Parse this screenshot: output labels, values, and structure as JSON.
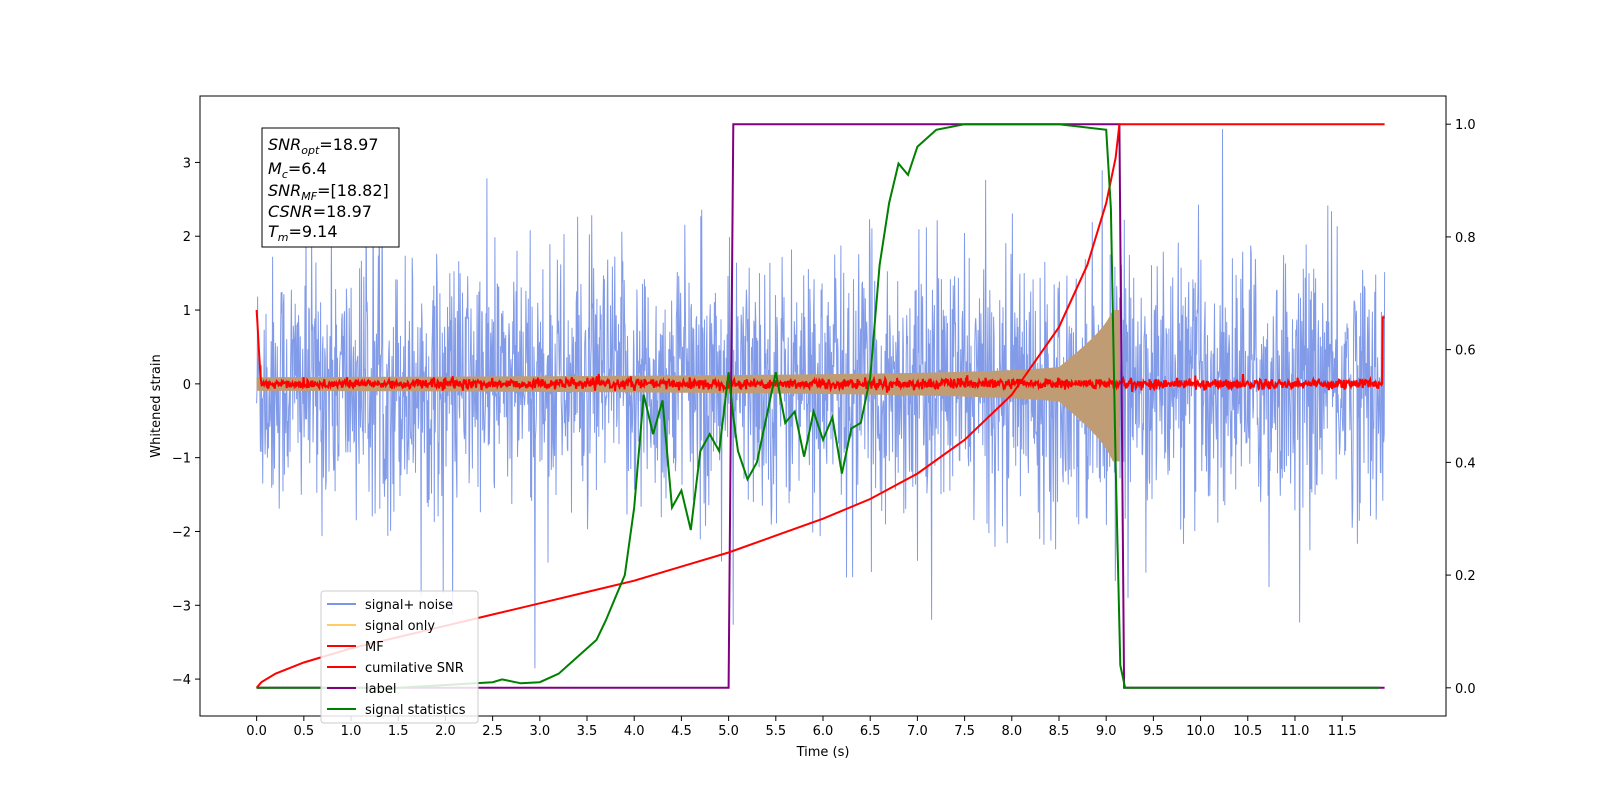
{
  "chart_data": {
    "type": "line",
    "xlabel": "Time (s)",
    "ylabel": "Whitened strain",
    "xlim": [
      -0.6,
      12.6
    ],
    "ylim_left": [
      -4.5,
      3.9
    ],
    "ylim_right": [
      -0.05,
      1.05
    ],
    "x_ticks": [
      "0.0",
      "0.5",
      "1.0",
      "1.5",
      "2.0",
      "2.5",
      "3.0",
      "3.5",
      "4.0",
      "4.5",
      "5.0",
      "5.5",
      "6.0",
      "6.5",
      "7.0",
      "7.5",
      "8.0",
      "8.5",
      "9.0",
      "9.5",
      "10.0",
      "10.5",
      "11.0",
      "11.5"
    ],
    "y_ticks_left": [
      "3",
      "2",
      "1",
      "0",
      "−1",
      "−2",
      "−3",
      "−4"
    ],
    "y_ticks_right": [
      "1.0",
      "0.8",
      "0.6",
      "0.4",
      "0.2",
      "0.0"
    ],
    "legend_position": "lower-left",
    "legend": [
      "signal+ noise",
      "signal only",
      "MF",
      "cumilative SNR",
      "label",
      "signal statistics"
    ],
    "colors": {
      "noise": "#7b96e8",
      "signal": "#bf9c73",
      "mf": "#ff0000",
      "csnr": "#ff0000",
      "label": "#800080",
      "stats": "#008000"
    },
    "info_box": {
      "line1_main": "SNR",
      "line1_sub": "opt",
      "line1_val": "=18.97",
      "line2_main": "M",
      "line2_sub": "c",
      "line2_val": "=6.4",
      "line3_main": "SNR",
      "line3_sub": "MF",
      "line3_val": "=[18.82]",
      "line4_main": "CSNR",
      "line4_val": "=18.97",
      "line5_main": "T",
      "line5_sub": "m",
      "line5_val": "=9.14"
    },
    "series": [
      {
        "name": "label",
        "axis": "right",
        "x": [
          0.0,
          5.0,
          5.05,
          9.14,
          9.19,
          11.95
        ],
        "y": [
          0.0,
          0.0,
          1.0,
          1.0,
          0.0,
          0.0
        ]
      },
      {
        "name": "cumilative SNR",
        "axis": "right",
        "x": [
          0.0,
          0.05,
          0.2,
          0.5,
          1.0,
          1.5,
          2.0,
          2.5,
          3.0,
          3.5,
          4.0,
          4.5,
          5.0,
          5.5,
          6.0,
          6.5,
          7.0,
          7.5,
          8.0,
          8.5,
          8.8,
          9.0,
          9.1,
          9.14,
          11.95
        ],
        "y": [
          0.0,
          0.01,
          0.025,
          0.045,
          0.07,
          0.09,
          0.11,
          0.13,
          0.15,
          0.17,
          0.19,
          0.215,
          0.24,
          0.27,
          0.3,
          0.335,
          0.38,
          0.44,
          0.52,
          0.64,
          0.75,
          0.86,
          0.94,
          1.0,
          1.0
        ]
      },
      {
        "name": "signal statistics",
        "axis": "right",
        "x": [
          0.0,
          0.5,
          1.0,
          1.5,
          2.0,
          2.5,
          2.6,
          2.8,
          3.0,
          3.2,
          3.3,
          3.5,
          3.6,
          3.7,
          3.8,
          3.9,
          4.0,
          4.1,
          4.2,
          4.3,
          4.4,
          4.5,
          4.6,
          4.7,
          4.8,
          4.9,
          5.0,
          5.05,
          5.1,
          5.2,
          5.3,
          5.4,
          5.5,
          5.6,
          5.7,
          5.8,
          5.9,
          6.0,
          6.1,
          6.2,
          6.3,
          6.4,
          6.5,
          6.6,
          6.7,
          6.8,
          6.9,
          7.0,
          7.2,
          7.5,
          8.0,
          8.5,
          9.0,
          9.05,
          9.1,
          9.15,
          9.2,
          9.3,
          11.9
        ],
        "y": [
          0.0,
          0.0,
          0.0,
          0.0,
          0.005,
          0.01,
          0.015,
          0.008,
          0.01,
          0.025,
          0.04,
          0.07,
          0.085,
          0.12,
          0.16,
          0.2,
          0.32,
          0.52,
          0.45,
          0.51,
          0.32,
          0.35,
          0.28,
          0.42,
          0.45,
          0.42,
          0.56,
          0.48,
          0.42,
          0.37,
          0.4,
          0.48,
          0.56,
          0.47,
          0.49,
          0.41,
          0.49,
          0.44,
          0.48,
          0.38,
          0.46,
          0.47,
          0.55,
          0.75,
          0.86,
          0.93,
          0.91,
          0.96,
          0.99,
          1.0,
          1.0,
          1.0,
          0.99,
          0.85,
          0.4,
          0.04,
          0.0,
          0.0,
          0.0
        ]
      }
    ]
  }
}
